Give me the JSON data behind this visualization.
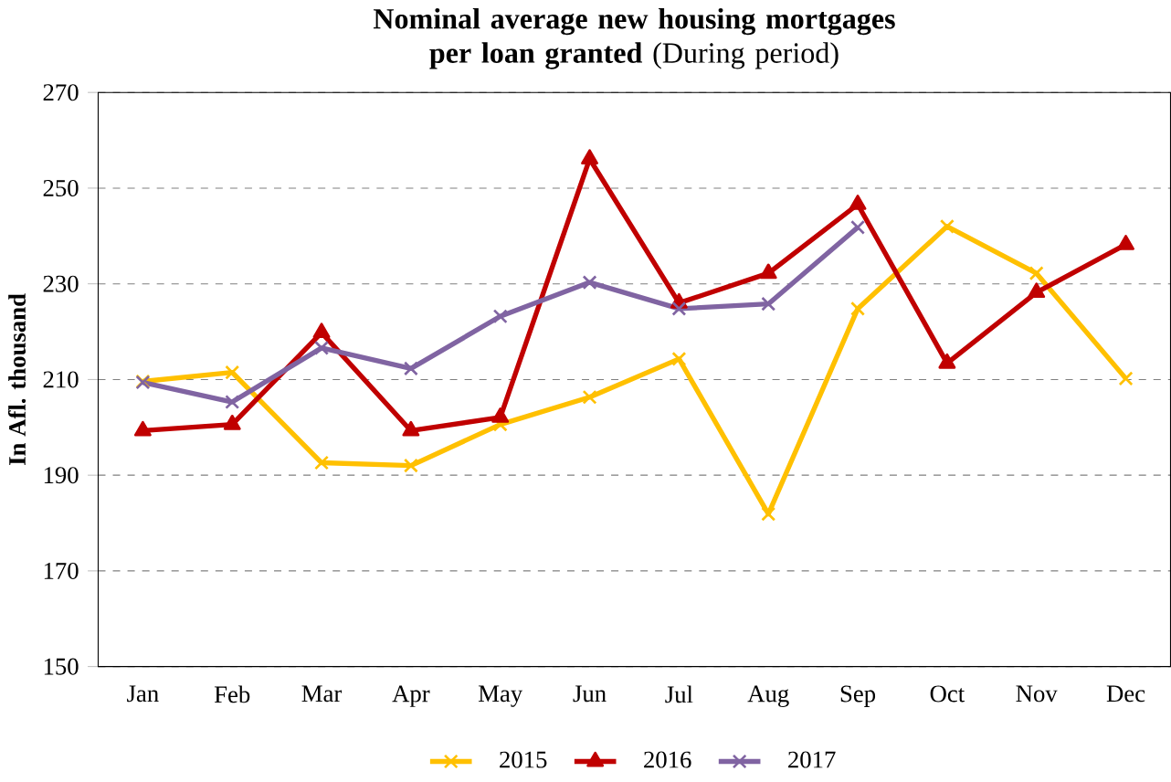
{
  "chart_data": {
    "type": "line",
    "title": "**Nominal average new housing mortgages per loan granted** (During period)",
    "ylabel": "In Afl. thousand",
    "categories": [
      "Jan",
      "Feb",
      "Mar",
      "Apr",
      "May",
      "Jun",
      "Jul",
      "Aug",
      "Sep",
      "Oct",
      "Nov",
      "Dec"
    ],
    "series": [
      {
        "name": "2015",
        "color": "#ffc000",
        "marker": "cross",
        "values": [
          209.6,
          211.5,
          192.6,
          192,
          200.6,
          206.3,
          214.3,
          181.9,
          224.8,
          242,
          232.2,
          210.2
        ]
      },
      {
        "name": "2016",
        "color": "#c00000",
        "marker": "triangle",
        "values": [
          199.3,
          200.6,
          219.8,
          199.3,
          202.1,
          256.1,
          226,
          232.2,
          246.6,
          213.4,
          228.2,
          238.2
        ]
      },
      {
        "name": "2017",
        "color": "#8064a2",
        "marker": "cross",
        "values": [
          209.4,
          205.3,
          216.6,
          212.3,
          223.2,
          230.3,
          224.8,
          225.8,
          241.8,
          null,
          null,
          null
        ]
      }
    ],
    "ylim": [
      150,
      270
    ],
    "yticks": [
      150,
      170,
      190,
      210,
      230,
      250,
      270
    ],
    "grid": "y",
    "legend": "bottom",
    "line_style": "solid"
  }
}
